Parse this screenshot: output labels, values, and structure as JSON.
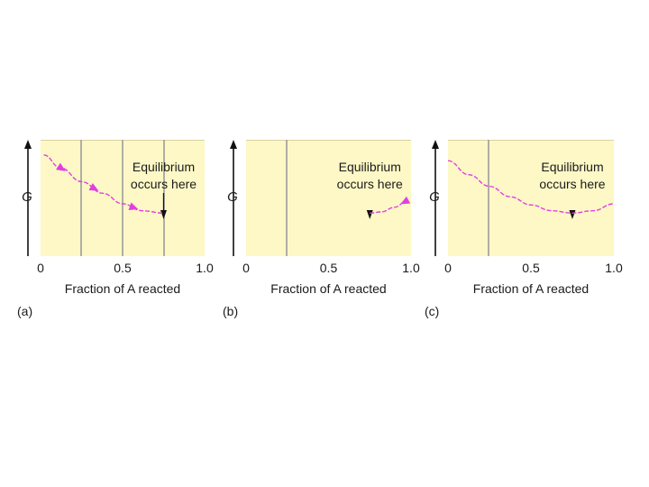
{
  "colors": {
    "plot_bg": "#fdf8c6",
    "curve": "#e040e0",
    "grid": "#9c9c9c",
    "axis": "#111111"
  },
  "chart_data": [
    {
      "type": "line",
      "panel_label": "(a)",
      "ylabel": "G",
      "xlabel": "Fraction of A reacted",
      "xlim": [
        0,
        1.0
      ],
      "xticks": [
        "0",
        "0.5",
        "1.0"
      ],
      "annotation": [
        "Equilibrium",
        "occurs here"
      ],
      "equilibrium_x": 0.75,
      "series": [
        {
          "x": [
            0.02,
            0.12,
            0.25,
            0.38,
            0.5,
            0.62,
            0.75
          ],
          "y": [
            0.87,
            0.76,
            0.64,
            0.54,
            0.45,
            0.39,
            0.37
          ]
        }
      ],
      "direction_arrows_at_x": [
        0.13,
        0.33,
        0.57
      ]
    },
    {
      "type": "line",
      "panel_label": "(b)",
      "ylabel": "G",
      "xlabel": "Fraction of A reacted",
      "xlim": [
        0,
        1.0
      ],
      "xticks": [
        "0",
        "0.5",
        "1.0"
      ],
      "annotation": [
        "Equilibrium",
        "occurs here"
      ],
      "equilibrium_x": 0.75,
      "series": [
        {
          "x": [
            0.75,
            0.82,
            0.9,
            0.98
          ],
          "y": [
            0.37,
            0.38,
            0.42,
            0.48
          ]
        }
      ],
      "direction_arrows_at_x": [
        0.96
      ]
    },
    {
      "type": "line",
      "panel_label": "(c)",
      "ylabel": "G",
      "xlabel": "Fraction of A reacted",
      "xlim": [
        0,
        1.0
      ],
      "xticks": [
        "0",
        "0.5",
        "1.0"
      ],
      "annotation": [
        "Equilibrium",
        "occurs here"
      ],
      "equilibrium_x": 0.75,
      "series": [
        {
          "x": [
            0.0,
            0.125,
            0.25,
            0.375,
            0.5,
            0.625,
            0.75,
            0.875,
            1.0
          ],
          "y": [
            0.82,
            0.7,
            0.6,
            0.51,
            0.44,
            0.39,
            0.37,
            0.39,
            0.45
          ]
        }
      ],
      "direction_arrows_at_x": []
    }
  ]
}
